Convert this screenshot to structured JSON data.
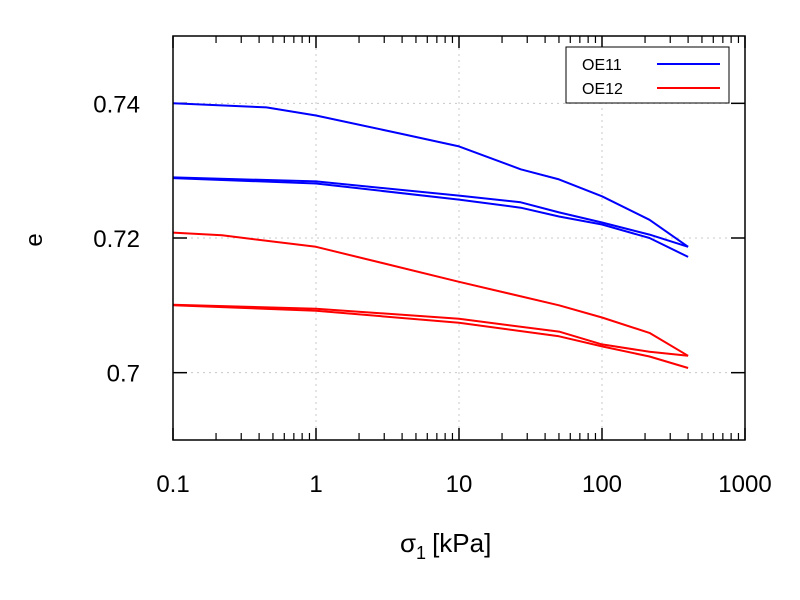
{
  "chart_data": {
    "type": "line",
    "title": "",
    "xlabel": "σ",
    "xlabel_sub": "1",
    "xlabel_unit": "[kPa]",
    "ylabel": "e",
    "xscale": "log",
    "xlim": [
      0.1,
      1000
    ],
    "ylim": [
      0.69,
      0.75
    ],
    "xticks": [
      0.1,
      1,
      10,
      100,
      1000
    ],
    "xtick_labels": [
      "0.1",
      "1",
      "10",
      "100",
      "1000"
    ],
    "yticks": [
      0.7,
      0.72,
      0.74
    ],
    "ytick_labels": [
      "0.7",
      "0.72",
      "0.74"
    ],
    "grid": true,
    "legend_position": "top-right",
    "series": [
      {
        "name": "OE11",
        "color": "#0000ff",
        "segments": [
          {
            "x": [
              0.1,
              0.45,
              1,
              3.9,
              10,
              27,
              50,
              100,
              215,
              400
            ],
            "y": [
              0.74,
              0.7394,
              0.7382,
              0.7355,
              0.7336,
              0.7302,
              0.7287,
              0.7262,
              0.7227,
              0.7187
            ]
          },
          {
            "x": [
              400,
              215,
              100,
              50,
              27,
              10,
              1,
              0.1
            ],
            "y": [
              0.7187,
              0.7205,
              0.7223,
              0.7238,
              0.7253,
              0.7263,
              0.7284,
              0.729
            ]
          },
          {
            "x": [
              0.1,
              1,
              10,
              27,
              50,
              100,
              215,
              400
            ],
            "y": [
              0.7289,
              0.7281,
              0.7257,
              0.7245,
              0.7232,
              0.722,
              0.72,
              0.7172
            ]
          }
        ]
      },
      {
        "name": "OE12",
        "color": "#ff0000",
        "segments": [
          {
            "x": [
              0.1,
              0.22,
              1,
              10,
              50,
              100,
              215,
              400
            ],
            "y": [
              0.7208,
              0.7204,
              0.7187,
              0.7135,
              0.71,
              0.7082,
              0.7059,
              0.7025
            ]
          },
          {
            "x": [
              400,
              215,
              100,
              50,
              10,
              1,
              0.1
            ],
            "y": [
              0.7025,
              0.7031,
              0.7042,
              0.7061,
              0.708,
              0.7095,
              0.7101
            ]
          },
          {
            "x": [
              0.1,
              1,
              10,
              50,
              100,
              215,
              400
            ],
            "y": [
              0.71,
              0.7092,
              0.7074,
              0.7054,
              0.7039,
              0.7024,
              0.7007
            ]
          }
        ]
      }
    ]
  }
}
